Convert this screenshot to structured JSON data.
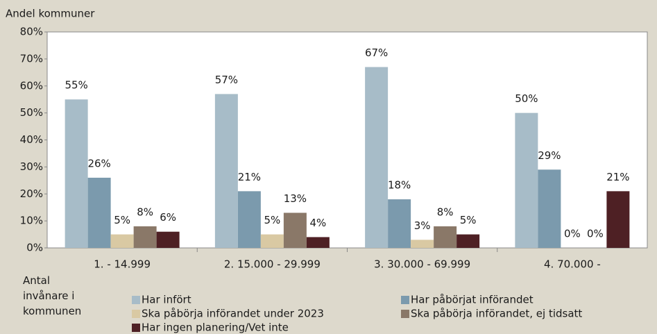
{
  "chart_data": {
    "type": "bar",
    "y_axis_label": "Andel kommuner",
    "x_axis_label": "Antal invånare i kommunen",
    "categories": [
      "1. - 14.999",
      "2. 15.000 - 29.999",
      "3. 30.000 - 69.999",
      "4. 70.000 -"
    ],
    "series": [
      {
        "name": "Har infört",
        "color": "#a7bcc8",
        "values": [
          55,
          57,
          67,
          50
        ],
        "value_labels": [
          "55%",
          "57%",
          "67%",
          "50%"
        ]
      },
      {
        "name": "Har påbörjat införandet",
        "color": "#7b9aad",
        "values": [
          26,
          21,
          18,
          29
        ],
        "value_labels": [
          "26%",
          "21%",
          "18%",
          "29%"
        ]
      },
      {
        "name": "Ska påbörja införandet under 2023",
        "color": "#d9c9a3",
        "values": [
          5,
          5,
          3,
          0
        ],
        "value_labels": [
          "5%",
          "5%",
          "3%",
          "0%"
        ]
      },
      {
        "name": "Ska påbörja införandet, ej tidsatt",
        "color": "#8a7868",
        "values": [
          8,
          13,
          8,
          0
        ],
        "value_labels": [
          "8%",
          "13%",
          "8%",
          "0%"
        ]
      },
      {
        "name": "Har ingen planering/Vet inte",
        "color": "#4e2024",
        "values": [
          6,
          4,
          5,
          21
        ],
        "value_labels": [
          "6%",
          "4%",
          "5%",
          "21%"
        ]
      }
    ],
    "ylim": [
      0,
      80
    ],
    "yticks": [
      {
        "value": 0,
        "label": "0%"
      },
      {
        "value": 10,
        "label": "10%"
      },
      {
        "value": 20,
        "label": "20%"
      },
      {
        "value": 30,
        "label": "30%"
      },
      {
        "value": 40,
        "label": "40%"
      },
      {
        "value": 50,
        "label": "50%"
      },
      {
        "value": 60,
        "label": "60%"
      },
      {
        "value": 70,
        "label": "70%"
      },
      {
        "value": 80,
        "label": "80%"
      }
    ],
    "grid": false
  }
}
